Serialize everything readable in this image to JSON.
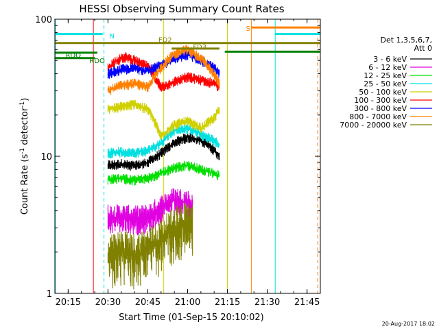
{
  "chart_data": {
    "type": "line",
    "title": "HESSI Observing Summary Count Rates",
    "xlabel": "Start Time (01-Sep-15 20:10:02)",
    "ylabel": "Count Rate (s⁻¹ detector⁻¹)",
    "ylabel_parts": {
      "main": "Count Rate (s",
      "sup1": "-1",
      "mid": " detector",
      "sup2": "-1",
      "end": ")"
    },
    "x_range_minutes": [
      0,
      100
    ],
    "x_range_label": [
      "20:10:02",
      "21:50:02"
    ],
    "ylim": [
      1,
      100
    ],
    "y_scale": "log",
    "x_ticks": [
      {
        "label": "20:15",
        "min": 5
      },
      {
        "label": "20:30",
        "min": 20
      },
      {
        "label": "20:45",
        "min": 35
      },
      {
        "label": "21:00",
        "min": 50
      },
      {
        "label": "21:15",
        "min": 65
      },
      {
        "label": "21:30",
        "min": 80
      },
      {
        "label": "21:45",
        "min": 95
      }
    ],
    "y_ticks": [
      {
        "label": "1",
        "value": 1
      },
      {
        "label": "10",
        "value": 10
      },
      {
        "label": "100",
        "value": 100
      }
    ],
    "legend": {
      "placement": "right",
      "header": [
        "Det 1,3,5,6,7,",
        "Att 0"
      ]
    },
    "series": [
      {
        "name": "3 - 6 keV",
        "color": "#000000",
        "x": [
          20,
          25,
          30,
          35,
          40,
          45,
          50,
          55,
          58,
          60,
          62
        ],
        "y": [
          8.6,
          8.8,
          8.5,
          9.0,
          10.5,
          12.5,
          13.8,
          13.0,
          12.0,
          11.0,
          10.0
        ]
      },
      {
        "name": "6 - 12 keV",
        "color": "#e000e0",
        "x": [
          20,
          25,
          30,
          35,
          40,
          45,
          50,
          52
        ],
        "y": [
          3.6,
          3.6,
          3.5,
          3.6,
          4.2,
          4.8,
          4.6,
          4.2
        ]
      },
      {
        "name": "12 - 25 keV",
        "color": "#00e000",
        "x": [
          20,
          25,
          30,
          35,
          40,
          45,
          50,
          55,
          60,
          62
        ],
        "y": [
          6.8,
          6.9,
          6.7,
          6.9,
          7.5,
          8.3,
          8.6,
          8.0,
          7.5,
          7.2
        ]
      },
      {
        "name": "25 - 50 keV",
        "color": "#00e0e0",
        "x": [
          20,
          25,
          30,
          35,
          40,
          45,
          50,
          55,
          60,
          62
        ],
        "y": [
          10.5,
          10.8,
          10.6,
          11.0,
          12.5,
          15.5,
          16.0,
          14.5,
          13.0,
          12.0
        ]
      },
      {
        "name": "50 - 100 keV",
        "color": "#d0d000",
        "x": [
          20,
          25,
          30,
          35,
          40,
          45,
          50,
          55,
          60,
          62
        ],
        "y": [
          22,
          23,
          24,
          22,
          14,
          17,
          18,
          16,
          19,
          22
        ]
      },
      {
        "name": "100 - 300 keV",
        "color": "#ff0000",
        "x": [
          20,
          23,
          27,
          30,
          35,
          40,
          45,
          50,
          55,
          60,
          62
        ],
        "y": [
          44,
          50,
          53,
          50,
          45,
          32,
          35,
          38,
          36,
          34,
          32
        ]
      },
      {
        "name": "300 - 800 keV",
        "color": "#0000ff",
        "x": [
          20,
          25,
          30,
          35,
          40,
          45,
          50,
          55,
          60,
          62
        ],
        "y": [
          40,
          43,
          44,
          42,
          46,
          52,
          55,
          50,
          44,
          40
        ]
      },
      {
        "name": "800 - 7000 keV",
        "color": "#ff8000",
        "x": [
          20,
          25,
          30,
          35,
          40,
          45,
          50,
          55,
          60,
          62
        ],
        "y": [
          30,
          33,
          34,
          32,
          44,
          56,
          60,
          52,
          40,
          34
        ]
      },
      {
        "name": "7000 - 20000 keV",
        "color": "#808000",
        "x": [
          20,
          25,
          30,
          35,
          40,
          45,
          50,
          52
        ],
        "y": [
          1.8,
          2.0,
          1.9,
          2.1,
          2.4,
          3.0,
          3.3,
          3.2
        ]
      }
    ],
    "event_markers": [
      {
        "label": "RDO",
        "color": "#008000",
        "y": 57,
        "x_from": 0,
        "x_to": 16,
        "label_min": 4,
        "label_y": 55
      },
      {
        "label": "RDO",
        "color": "#008000",
        "y": 52,
        "x_from": 0,
        "x_to": 15,
        "label_min": 13,
        "label_y": 50
      },
      {
        "label": "RDO",
        "color": "#008000",
        "y": 58,
        "x_from": 64,
        "x_to": 100,
        "label_min": 0,
        "label_y": 0,
        "hidden_label": true
      },
      {
        "label": "FD2",
        "color": "#808000",
        "y": 67,
        "x_from": 0,
        "x_to": 100,
        "label_min": 39,
        "label_y": 71
      },
      {
        "label": "FD3",
        "color": "#808000",
        "y": 61,
        "x_from": 44,
        "x_to": 62,
        "label_min": 52,
        "label_y": 63
      },
      {
        "label": "N",
        "color": "#00e0e0",
        "y": 78,
        "x_from": 0,
        "x_to": 18,
        "label_min": 20.5,
        "label_y": 76
      },
      {
        "label": "N",
        "color": "#00e0e0",
        "y": 78,
        "x_from": 83,
        "x_to": 100,
        "label_min": 0,
        "label_y": 0,
        "hidden_label": true
      },
      {
        "label": "S",
        "color": "#ff8000",
        "y": 87,
        "x_from": 74,
        "x_to": 100,
        "label_min": 72,
        "label_y": 86
      }
    ],
    "vertical_lines": [
      {
        "min": 0.2,
        "color": "#00e0e0",
        "style": "solid"
      },
      {
        "min": 14.5,
        "color": "#ff0000",
        "style": "solid"
      },
      {
        "min": 18.5,
        "color": "#00e0e0",
        "style": "dashed"
      },
      {
        "min": 41,
        "color": "#d0d000",
        "style": "solid"
      },
      {
        "min": 65,
        "color": "#d0d000",
        "style": "solid"
      },
      {
        "min": 74,
        "color": "#ff8000",
        "style": "solid"
      },
      {
        "min": 83,
        "color": "#00e0e0",
        "style": "solid"
      },
      {
        "min": 99,
        "color": "#ff8000",
        "style": "dashed"
      }
    ],
    "footer": "20-Aug-2017 18:02"
  }
}
